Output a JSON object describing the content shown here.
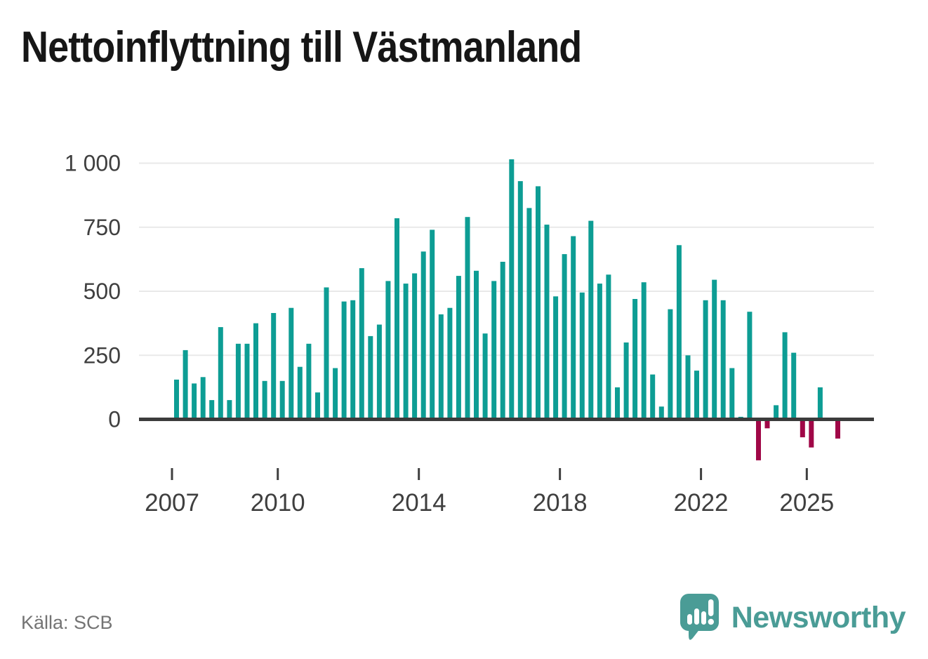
{
  "title": "Nettoinflyttning till Västmanland",
  "source": "Källa: SCB",
  "logo": {
    "text": "Newsworthy"
  },
  "colors": {
    "positive": "#0d9d94",
    "negative": "#a00747",
    "grid": "#e9e9e9",
    "axis": "#3b3b3b",
    "text": "#3f3f3f",
    "muted": "#747474",
    "logo": "#4a9c96",
    "title": "#161616"
  },
  "chart_data": {
    "type": "bar",
    "title": "Nettoinflyttning till Västmanland",
    "source": "Källa: SCB",
    "xlabel": "",
    "ylabel": "",
    "grid": "horizontal",
    "legend": "none",
    "ylim": [
      -250,
      1040
    ],
    "y_ticks": [
      {
        "value": 0,
        "label": "0"
      },
      {
        "value": 250,
        "label": "250"
      },
      {
        "value": 500,
        "label": "500"
      },
      {
        "value": 750,
        "label": "750"
      },
      {
        "value": 1000,
        "label": "1 000"
      }
    ],
    "x_ticks": [
      2007,
      2010,
      2014,
      2018,
      2022,
      2025
    ],
    "categories": [
      "2007K1",
      "2007K2",
      "2007K3",
      "2007K4",
      "2008K1",
      "2008K2",
      "2008K3",
      "2008K4",
      "2009K1",
      "2009K2",
      "2009K3",
      "2009K4",
      "2010K1",
      "2010K2",
      "2010K3",
      "2010K4",
      "2011K1",
      "2011K2",
      "2011K3",
      "2011K4",
      "2012K1",
      "2012K2",
      "2012K3",
      "2012K4",
      "2013K1",
      "2013K2",
      "2013K3",
      "2013K4",
      "2014K1",
      "2014K2",
      "2014K3",
      "2014K4",
      "2015K1",
      "2015K2",
      "2015K3",
      "2015K4",
      "2016K1",
      "2016K2",
      "2016K3",
      "2016K4",
      "2017K1",
      "2017K2",
      "2017K3",
      "2017K4",
      "2018K1",
      "2018K2",
      "2018K3",
      "2018K4",
      "2019K1",
      "2019K2",
      "2019K3",
      "2019K4",
      "2020K1",
      "2020K2",
      "2020K3",
      "2020K4",
      "2021K1",
      "2021K2",
      "2021K3",
      "2021K4",
      "2022K1",
      "2022K2",
      "2022K3",
      "2022K4",
      "2023K1",
      "2023K2",
      "2023K3",
      "2023K4",
      "2024K1",
      "2024K2",
      "2024K3",
      "2024K4",
      "2025K1",
      "2025K2",
      "2025K3",
      "2025K4"
    ],
    "values": [
      155,
      270,
      140,
      165,
      75,
      360,
      75,
      295,
      295,
      375,
      150,
      415,
      150,
      435,
      205,
      295,
      105,
      515,
      200,
      460,
      465,
      590,
      325,
      370,
      540,
      785,
      530,
      570,
      655,
      740,
      410,
      435,
      560,
      790,
      580,
      335,
      540,
      615,
      1015,
      930,
      825,
      910,
      760,
      480,
      645,
      715,
      495,
      775,
      530,
      565,
      125,
      300,
      470,
      535,
      175,
      50,
      430,
      680,
      250,
      190,
      465,
      545,
      465,
      200,
      10,
      420,
      -160,
      -35,
      55,
      340,
      260,
      -70,
      -110,
      125,
      0,
      -75
    ]
  }
}
